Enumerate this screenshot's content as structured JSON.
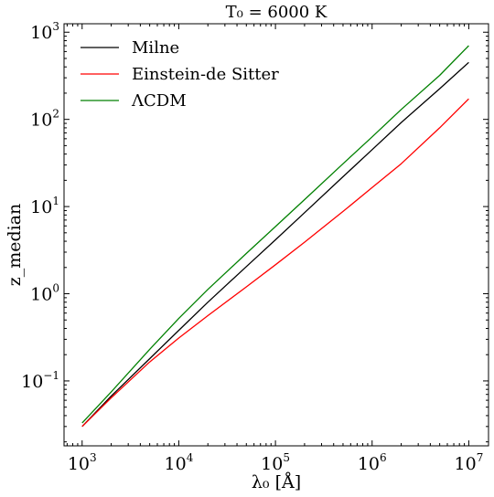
{
  "chart_data": {
    "type": "line",
    "title": "T₀ = 6000 K",
    "xlabel": "λ₀ [Å]",
    "ylabel": "z_median",
    "xscale": "log",
    "yscale": "log",
    "xlim": [
      650,
      16000000
    ],
    "ylim": [
      0.018,
      1250
    ],
    "x": [
      1000,
      2000,
      5000,
      10000,
      20000,
      50000,
      100000,
      200000,
      500000,
      1000000,
      2000000,
      5000000,
      10000000
    ],
    "series": [
      {
        "name": "Milne",
        "color": "#000000",
        "values": [
          0.03,
          0.067,
          0.18,
          0.38,
          0.8,
          2.05,
          4.15,
          8.5,
          22,
          45,
          92,
          225,
          450
        ]
      },
      {
        "name": "Einstein-de Sitter",
        "color": "#ff0000",
        "values": [
          0.03,
          0.064,
          0.165,
          0.31,
          0.56,
          1.2,
          2.15,
          3.9,
          8.8,
          16.5,
          31,
          80,
          172
        ]
      },
      {
        "name": "ΛCDM",
        "color": "#008000",
        "values": [
          0.033,
          0.075,
          0.23,
          0.52,
          1.12,
          2.9,
          5.9,
          12.0,
          31,
          63,
          130,
          320,
          700
        ]
      }
    ],
    "xticks": [
      {
        "mantissa": "10",
        "exp": "3",
        "value": 1000
      },
      {
        "mantissa": "10",
        "exp": "4",
        "value": 10000
      },
      {
        "mantissa": "10",
        "exp": "5",
        "value": 100000
      },
      {
        "mantissa": "10",
        "exp": "6",
        "value": 1000000
      },
      {
        "mantissa": "10",
        "exp": "7",
        "value": 10000000
      }
    ],
    "yticks": [
      {
        "mantissa": "10",
        "exp": "−1",
        "value": 0.1
      },
      {
        "mantissa": "10",
        "exp": "0",
        "value": 1
      },
      {
        "mantissa": "10",
        "exp": "1",
        "value": 10
      },
      {
        "mantissa": "10",
        "exp": "2",
        "value": 100
      },
      {
        "mantissa": "10",
        "exp": "3",
        "value": 1000
      }
    ],
    "legend": "top-left",
    "grid": false
  }
}
